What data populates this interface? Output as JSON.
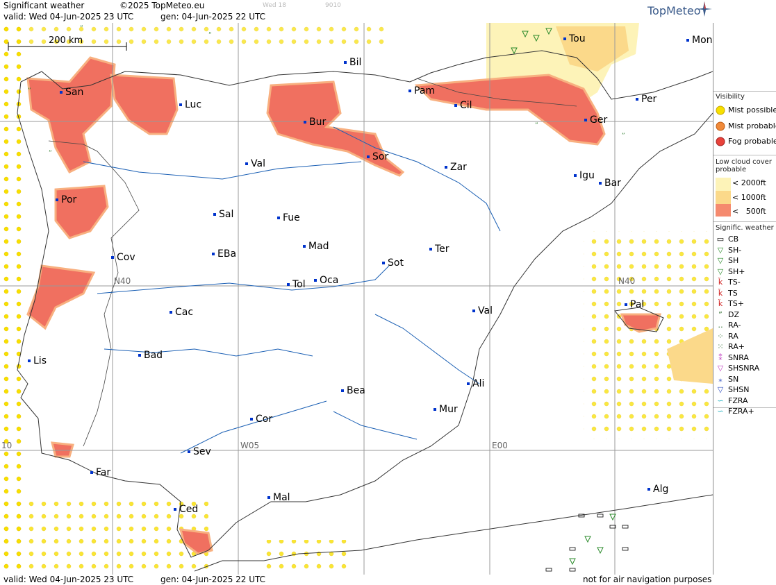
{
  "header": {
    "product": "Significant weather",
    "copyright": "©2025 TopMeteo.eu",
    "valid_line": "valid:  Wed  04-Jun-2025  23 UTC",
    "gen_line": "gen: 04-Jun-2025 22 UTC",
    "faint_1": "Wed 18",
    "faint_2": "9010",
    "logo": "TopMeteo"
  },
  "footer": {
    "valid_line": "valid:  Wed  04-Jun-2025  23 UTC",
    "gen_line": "gen: 04-Jun-2025 22 UTC",
    "disclaimer": "not for air navigation purposes"
  },
  "map": {
    "scale_label": "200 km",
    "grid_labels": {
      "n40_left": "N40",
      "n40_right": "N40",
      "w05": "W05",
      "e00": "E00",
      "w10": "10"
    },
    "cities": [
      {
        "name": "San"
      },
      {
        "name": "Luc"
      },
      {
        "name": "Bil"
      },
      {
        "name": "Pam"
      },
      {
        "name": "Tou"
      },
      {
        "name": "Mon"
      },
      {
        "name": "Cil"
      },
      {
        "name": "Per"
      },
      {
        "name": "Bur"
      },
      {
        "name": "Ger"
      },
      {
        "name": "Val"
      },
      {
        "name": "Sor"
      },
      {
        "name": "Zar"
      },
      {
        "name": "Igu"
      },
      {
        "name": "Bar"
      },
      {
        "name": "Por"
      },
      {
        "name": "Sal"
      },
      {
        "name": "Fue"
      },
      {
        "name": "Mad"
      },
      {
        "name": "EBa"
      },
      {
        "name": "Cov"
      },
      {
        "name": "Ter"
      },
      {
        "name": "Sot"
      },
      {
        "name": "Tol"
      },
      {
        "name": "Oca"
      },
      {
        "name": "Pal"
      },
      {
        "name": "Cac"
      },
      {
        "name": "Val"
      },
      {
        "name": "Bad"
      },
      {
        "name": "Lis"
      },
      {
        "name": "Bea"
      },
      {
        "name": "Ali"
      },
      {
        "name": "Mur"
      },
      {
        "name": "Cor"
      },
      {
        "name": "Sev"
      },
      {
        "name": "Far"
      },
      {
        "name": "Mal"
      },
      {
        "name": "Alg"
      },
      {
        "name": "Ced"
      }
    ]
  },
  "legend": {
    "visibility_title": "Visibility",
    "visibility": [
      "Mist possible",
      "Mist probable",
      "Fog probable"
    ],
    "lowcloud_title_1": "Low cloud cover",
    "lowcloud_title_2": "probable",
    "lowcloud": [
      "< 2000ft",
      "< 1000ft",
      "<   500ft"
    ],
    "sigwx_title": "Signific. weather",
    "sigwx": [
      "CB",
      "SH-",
      "SH",
      "SH+",
      "TS-",
      "TS",
      "TS+",
      "DZ",
      "RA-",
      "RA",
      "RA+",
      "SNRA",
      "SHSNRA",
      "SN",
      "SHSN",
      "FZRA",
      "FZRA+"
    ],
    "colors": {
      "fog": "#e8423a",
      "mist_prob": "#f08a3a",
      "mist_poss": "#f7e000",
      "lc2000": "#fdf3b8",
      "lc1000": "#fbd98a",
      "lc500": "#f58a6e",
      "river": "#1a5fb4",
      "coast": "#333333"
    }
  }
}
